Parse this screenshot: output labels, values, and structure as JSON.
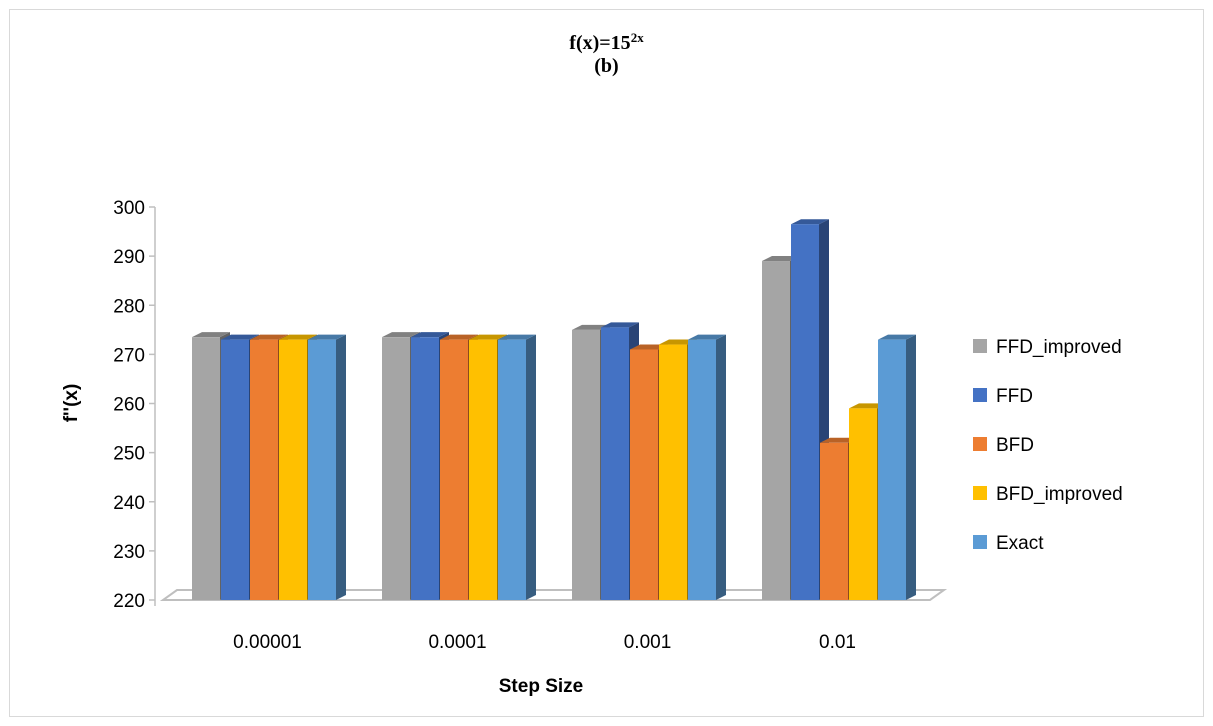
{
  "chart_data": {
    "type": "bar",
    "title_main": "f(x)=15",
    "title_exponent": "2x",
    "title_sub": "(b)",
    "xlabel": "Step Size",
    "ylabel": "f''(x)",
    "ylim": [
      220,
      300
    ],
    "yticks": [
      "220",
      "230",
      "240",
      "250",
      "260",
      "270",
      "280",
      "290",
      "300"
    ],
    "categories": [
      "0.00001",
      "0.0001",
      "0.001",
      "0.01"
    ],
    "legend_position": "right",
    "series": [
      {
        "name": "FFD_improved",
        "color": "#a5a5a5",
        "values": [
          273.5,
          273.5,
          275,
          289
        ]
      },
      {
        "name": "FFD",
        "color": "#4472c4",
        "values": [
          273,
          273.5,
          275.5,
          296.5
        ]
      },
      {
        "name": "BFD",
        "color": "#ed7d31",
        "values": [
          273,
          273,
          271,
          252
        ]
      },
      {
        "name": "BFD_improved",
        "color": "#ffc000",
        "values": [
          273,
          273,
          272,
          259
        ]
      },
      {
        "name": "Exact",
        "color": "#5b9bd5",
        "values": [
          273,
          273,
          273,
          273
        ]
      }
    ]
  }
}
